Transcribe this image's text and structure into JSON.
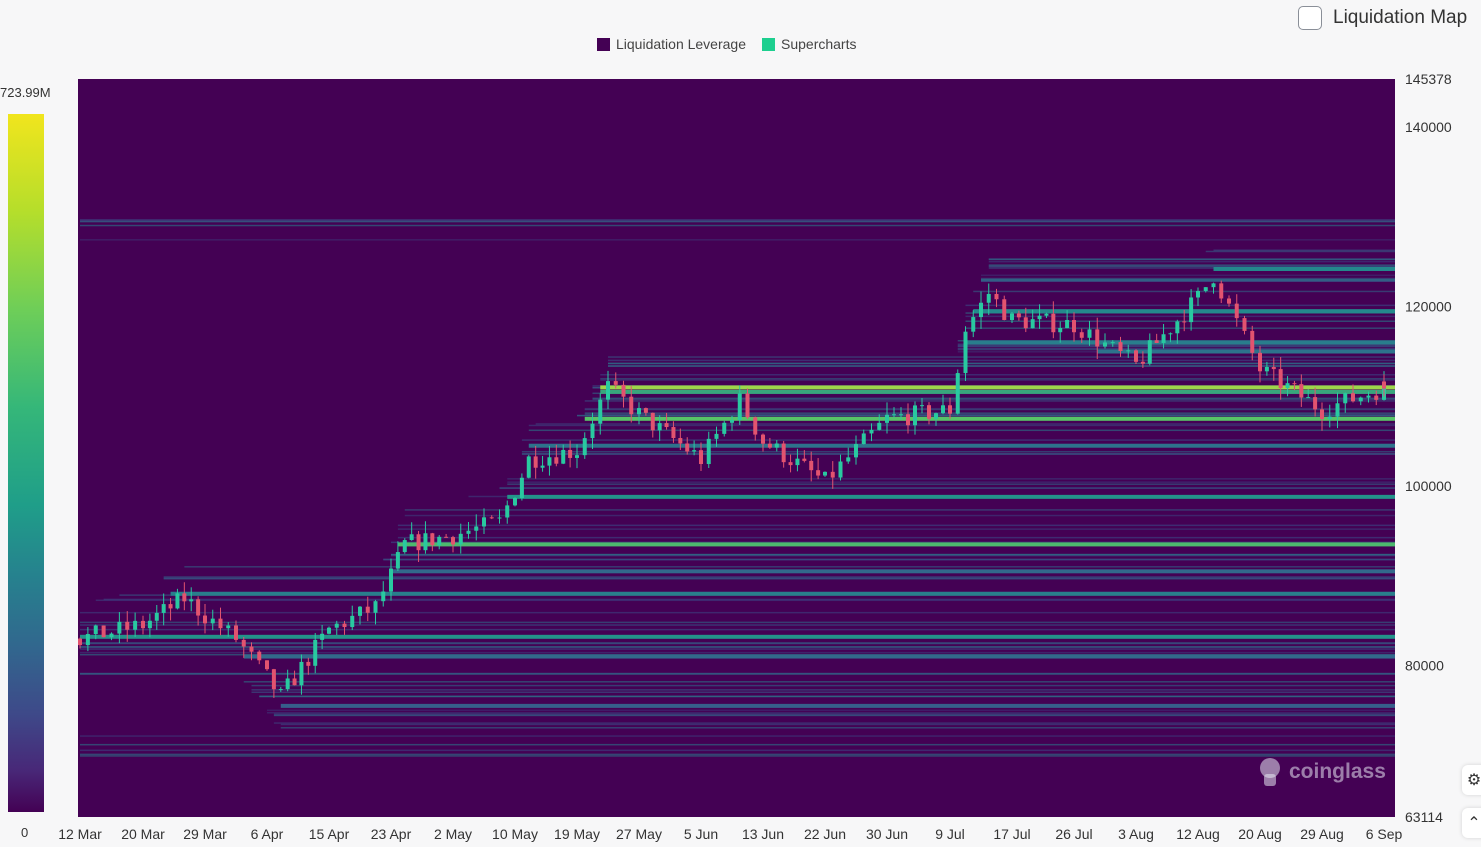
{
  "header": {
    "toggle_label": "Liquidation Map",
    "legend": [
      {
        "label": "Liquidation Leverage",
        "color": "#440154"
      },
      {
        "label": "Supercharts",
        "color": "#1dcf8f"
      }
    ]
  },
  "scale": {
    "max_label": "723.99M",
    "min_label": "0",
    "colormap": "viridis"
  },
  "watermark": {
    "text": "coinglass",
    "icon": "coinglass-logo-icon"
  },
  "side_buttons": [
    {
      "icon": "gear-icon"
    },
    {
      "icon": "chevron-up-icon"
    }
  ],
  "chart_data": {
    "type": "heatmap",
    "overlay": "candlestick",
    "ylim": [
      63114,
      145378
    ],
    "y_ticks": [
      "145378",
      "140000",
      "120000",
      "100000",
      "80000",
      "63114"
    ],
    "x_ticks": [
      "12 Mar",
      "20 Mar",
      "29 Mar",
      "6 Apr",
      "15 Apr",
      "23 Apr",
      "2 May",
      "10 May",
      "19 May",
      "27 May",
      "5 Jun",
      "13 Jun",
      "22 Jun",
      "30 Jun",
      "9 Jul",
      "17 Jul",
      "26 Jul",
      "3 Aug",
      "12 Aug",
      "20 Aug",
      "29 Aug",
      "6 Sep"
    ],
    "price_path": [
      {
        "date": "12 Mar",
        "price": 83000
      },
      {
        "date": "20 Mar",
        "price": 84500
      },
      {
        "date": "26 Mar",
        "price": 87500
      },
      {
        "date": "2 Apr",
        "price": 83000
      },
      {
        "date": "8 Apr",
        "price": 76500
      },
      {
        "date": "15 Apr",
        "price": 84000
      },
      {
        "date": "21 Apr",
        "price": 86500
      },
      {
        "date": "25 Apr",
        "price": 93500
      },
      {
        "date": "2 May",
        "price": 94500
      },
      {
        "date": "8 May",
        "price": 96000
      },
      {
        "date": "12 May",
        "price": 103000
      },
      {
        "date": "19 May",
        "price": 104000
      },
      {
        "date": "23 May",
        "price": 111000
      },
      {
        "date": "27 May",
        "price": 108000
      },
      {
        "date": "5 Jun",
        "price": 103000
      },
      {
        "date": "10 Jun",
        "price": 109500
      },
      {
        "date": "13 Jun",
        "price": 105000
      },
      {
        "date": "22 Jun",
        "price": 100500
      },
      {
        "date": "30 Jun",
        "price": 107500
      },
      {
        "date": "9 Jul",
        "price": 108500
      },
      {
        "date": "11 Jul",
        "price": 117500
      },
      {
        "date": "14 Jul",
        "price": 121500
      },
      {
        "date": "17 Jul",
        "price": 118500
      },
      {
        "date": "26 Jul",
        "price": 118000
      },
      {
        "date": "3 Aug",
        "price": 113500
      },
      {
        "date": "12 Aug",
        "price": 121000
      },
      {
        "date": "14 Aug",
        "price": 123500
      },
      {
        "date": "20 Aug",
        "price": 113000
      },
      {
        "date": "29 Aug",
        "price": 108500
      },
      {
        "date": "6 Sep",
        "price": 111000
      }
    ],
    "liquidation_bands": [
      {
        "price": 111000,
        "intensity": 1.0
      },
      {
        "price": 107500,
        "intensity": 0.85
      },
      {
        "price": 93500,
        "intensity": 0.8
      },
      {
        "price": 110500,
        "intensity": 0.7
      },
      {
        "price": 98800,
        "intensity": 0.6
      },
      {
        "price": 83200,
        "intensity": 0.6
      },
      {
        "price": 124200,
        "intensity": 0.55
      },
      {
        "price": 119500,
        "intensity": 0.55
      },
      {
        "price": 116000,
        "intensity": 0.5
      },
      {
        "price": 88000,
        "intensity": 0.5
      },
      {
        "price": 81000,
        "intensity": 0.4
      },
      {
        "price": 104500,
        "intensity": 0.45
      },
      {
        "price": 115000,
        "intensity": 0.45
      },
      {
        "price": 75500,
        "intensity": 0.35
      },
      {
        "price": 90500,
        "intensity": 0.4
      }
    ]
  }
}
